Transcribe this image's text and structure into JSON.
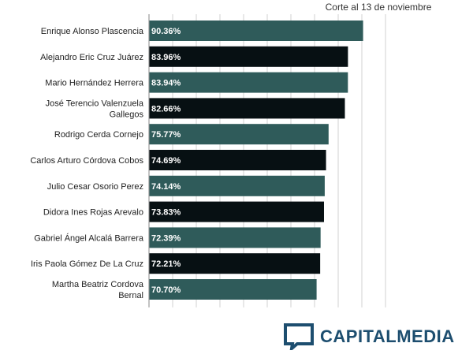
{
  "subtitle": "Corte al 13 de noviembre",
  "brand": {
    "name": "CAPITALMEDIA",
    "color": "#1d4e6f"
  },
  "colors": {
    "teal": "#2f5b5a",
    "black": "#071013",
    "grid": "#d0d0d0"
  },
  "chart_data": {
    "type": "bar",
    "orientation": "horizontal",
    "categories": [
      [
        "Enrique Alonso Plascencia"
      ],
      [
        "Alejandro Eric Cruz Juárez"
      ],
      [
        "Mario Hernández Herrera"
      ],
      [
        "José Terencio Valenzuela",
        "Gallegos"
      ],
      [
        "Rodrigo Cerda Cornejo"
      ],
      [
        "Carlos Arturo Córdova Cobos"
      ],
      [
        "Julio Cesar Osorio Perez"
      ],
      [
        "Didora Ines Rojas Arevalo"
      ],
      [
        "Gabriel Ángel Alcalá Barrera"
      ],
      [
        "Iris Paola Gómez De La Cruz"
      ],
      [
        "Martha Beatriz Cordova",
        "Bernal"
      ]
    ],
    "values": [
      90.36,
      83.96,
      83.94,
      82.66,
      75.77,
      74.69,
      74.14,
      73.83,
      72.39,
      72.21,
      70.7
    ],
    "value_labels": [
      "90.36%",
      "83.96%",
      "83.94%",
      "82.66%",
      "75.77%",
      "74.69%",
      "74.14%",
      "73.83%",
      "72.39%",
      "72.21%",
      "70.70%"
    ],
    "bar_colors": [
      "teal",
      "black",
      "teal",
      "black",
      "teal",
      "black",
      "teal",
      "black",
      "teal",
      "black",
      "teal"
    ],
    "xlim": [
      0,
      100
    ],
    "grid": true,
    "legend": "none"
  }
}
